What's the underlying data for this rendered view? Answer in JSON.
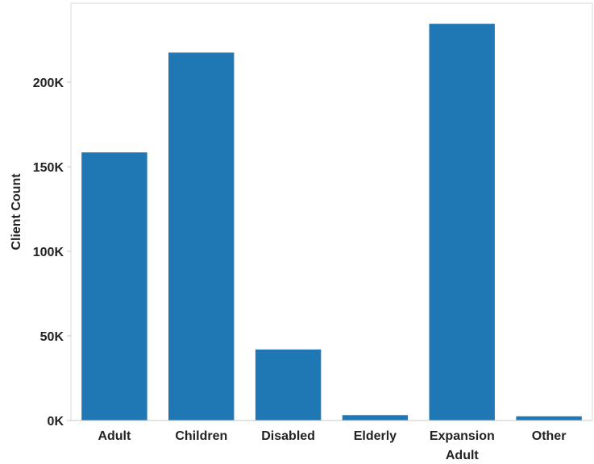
{
  "chart_data": {
    "type": "bar",
    "categories": [
      "Adult",
      "Children",
      "Disabled",
      "Elderly",
      "Expansion Adult",
      "Other"
    ],
    "category_lines": [
      [
        "Adult"
      ],
      [
        "Children"
      ],
      [
        "Disabled"
      ],
      [
        "Elderly"
      ],
      [
        "Expansion",
        "Adult"
      ],
      [
        "Other"
      ]
    ],
    "values": [
      158500,
      217500,
      42000,
      3200,
      234500,
      2500
    ],
    "title": "",
    "xlabel": "",
    "ylabel": "Client Count",
    "ylim": [
      0,
      250000
    ],
    "yticks": [
      0,
      50000,
      100000,
      150000,
      200000
    ],
    "ytick_labels": [
      "0K",
      "50K",
      "100K",
      "150K",
      "200K"
    ],
    "grid": false,
    "bar_color": "#1f77b4"
  }
}
